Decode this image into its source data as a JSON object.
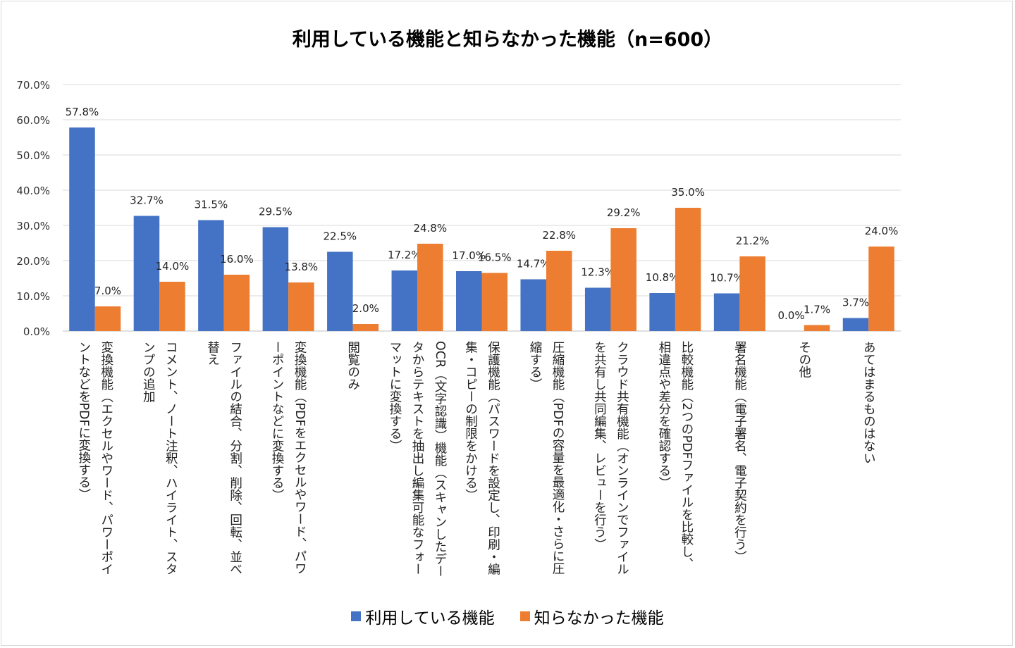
{
  "chart_data": {
    "type": "bar",
    "title": "利用している機能と知らなかった機能（n=600）",
    "ylim": [
      0,
      70
    ],
    "yticks": [
      "0.0%",
      "10.0%",
      "20.0%",
      "30.0%",
      "40.0%",
      "50.0%",
      "60.0%",
      "70.0%"
    ],
    "grid": true,
    "legend_position": "bottom",
    "categories": [
      "変換機能（エクセルやワード、パワーポイントなどをPDFに変換する）",
      "コメント、ノート注釈、ハイライト、スタンプの追加",
      "ファイルの結合、分割、削除、回転、並べ替え",
      "変換機能（PDFをエクセルやワード、パワーポイントなどに変換する）",
      "閲覧のみ",
      "OCR（文字認識）機能（スキャンしたデータからテキストを抽出し編集可能なフォーマットに変換する）",
      "保護機能（パスワードを設定し、印刷・編集・コピーの制限をかける）",
      "圧縮機能（PDFの容量を最適化・さらに圧縮する）",
      "クラウド共有機能（オンラインでファイルを共有し共同編集、レビューを行う）",
      "比較機能（2つのPDFファイルを比較し、相違点や差分を確認する）",
      "署名機能（電子署名、電子契約を行う）",
      "その他",
      "あてはまるものはない"
    ],
    "series": [
      {
        "name": "利用している機能",
        "color": "#4472c4",
        "values": [
          57.8,
          32.7,
          31.5,
          29.5,
          22.5,
          17.2,
          17.0,
          14.7,
          12.3,
          10.8,
          10.7,
          0.0,
          3.7
        ]
      },
      {
        "name": "知らなかった機能",
        "color": "#ed7d31",
        "values": [
          7.0,
          14.0,
          16.0,
          13.8,
          2.0,
          24.8,
          16.5,
          22.8,
          29.2,
          35.0,
          21.2,
          1.7,
          24.0
        ]
      }
    ]
  }
}
